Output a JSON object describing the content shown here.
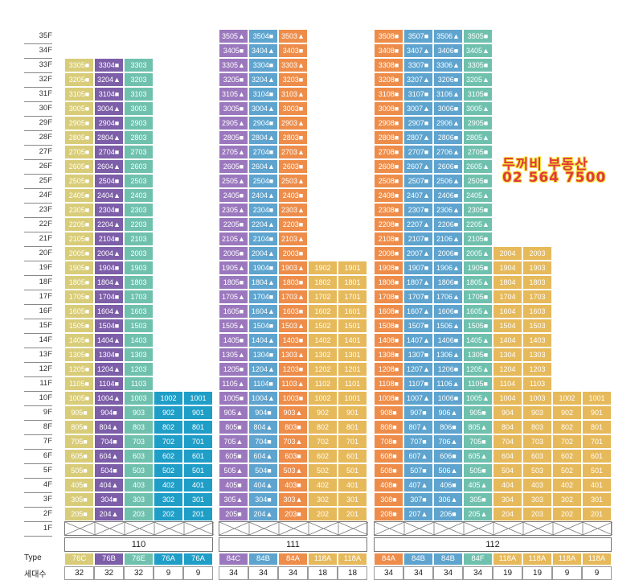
{
  "floors": [
    "35F",
    "34F",
    "33F",
    "32F",
    "31F",
    "30F",
    "29F",
    "28F",
    "27F",
    "26F",
    "25F",
    "24F",
    "23F",
    "22F",
    "21F",
    "20F",
    "19F",
    "18F",
    "17F",
    "16F",
    "15F",
    "14F",
    "13F",
    "12F",
    "11F",
    "10F",
    "9F",
    "8F",
    "7F",
    "6F",
    "5F",
    "4F",
    "3F",
    "2F",
    "1F"
  ],
  "legend": {
    "type_label": "Type",
    "households_label": "세대수"
  },
  "agency": {
    "name": "두꺼비 부동산",
    "phone": "02 564 7500"
  },
  "colors": {
    "76C": "#d8cc78",
    "76B": "#7d5ea8",
    "76E": "#6fc1ae",
    "76A": "#1f9ec8",
    "84C": "#9b78be",
    "84B": "#5ea4cf",
    "84A": "#ee8d4a",
    "118A": "#e6b95a"
  },
  "buildings": [
    {
      "name": "110",
      "lines": [
        {
          "type": "76C",
          "count": "32",
          "suffix": "05",
          "floors": [
            2,
            33
          ],
          "marks": "■",
          "color": "#d8cc78",
          "dark": false
        },
        {
          "type": "76B",
          "count": "32",
          "suffix": "04",
          "floors": [
            2,
            33
          ],
          "marks": "■▲",
          "color": "#7d5ea8",
          "dark": false
        },
        {
          "type": "76E",
          "count": "32",
          "suffix": "03",
          "floors": [
            2,
            33
          ],
          "marks": "",
          "color": "#6fc1ae",
          "dark": false
        },
        {
          "type": "76A",
          "count": "9",
          "suffix": "02",
          "floors": [
            2,
            10
          ],
          "marks": "",
          "color": "#1f9ec8",
          "dark": false
        },
        {
          "type": "76A",
          "count": "9",
          "suffix": "01",
          "floors": [
            2,
            10
          ],
          "marks": "",
          "color": "#1f9ec8",
          "dark": false
        }
      ]
    },
    {
      "name": "111",
      "lines": [
        {
          "type": "84C",
          "count": "34",
          "suffix": "05",
          "floors": [
            2,
            35
          ],
          "marks": "■▲",
          "color": "#9b78be",
          "dark": false
        },
        {
          "type": "84B",
          "count": "34",
          "suffix": "04",
          "floors": [
            2,
            35
          ],
          "marks": "■▲",
          "color": "#5ea4cf",
          "dark": false
        },
        {
          "type": "84A",
          "count": "34",
          "suffix": "03",
          "floors": [
            2,
            35
          ],
          "marks": "■▲",
          "color": "#ee8d4a",
          "dark": false
        },
        {
          "type": "118A",
          "count": "18",
          "suffix": "02",
          "floors": [
            2,
            19
          ],
          "marks": "",
          "color": "#e6b95a",
          "dark": false
        },
        {
          "type": "118A",
          "count": "18",
          "suffix": "01",
          "floors": [
            2,
            19
          ],
          "marks": "",
          "color": "#e6b95a",
          "dark": false
        }
      ]
    },
    {
      "name": "112",
      "lines": [
        {
          "type": "84A",
          "count": "34",
          "suffix": "08",
          "floors": [
            2,
            35
          ],
          "marks": "■",
          "color": "#ee8d4a",
          "dark": false
        },
        {
          "type": "84B",
          "count": "34",
          "suffix": "07",
          "floors": [
            2,
            35
          ],
          "marks": "■▲",
          "color": "#5ea4cf",
          "dark": false
        },
        {
          "type": "84B",
          "count": "34",
          "suffix": "06",
          "floors": [
            2,
            35
          ],
          "marks": "■▲",
          "color": "#5ea4cf",
          "dark": false
        },
        {
          "type": "84F",
          "count": "34",
          "suffix": "05",
          "floors": [
            2,
            35
          ],
          "marks": "■▲",
          "color": "#6fc1ae",
          "dark": false
        },
        {
          "type": "118A",
          "count": "19",
          "suffix": "04",
          "floors": [
            2,
            20
          ],
          "marks": "",
          "color": "#e6b95a",
          "dark": false
        },
        {
          "type": "118A",
          "count": "19",
          "suffix": "03",
          "floors": [
            2,
            20
          ],
          "marks": "",
          "color": "#e6b95a",
          "dark": false
        },
        {
          "type": "118A",
          "count": "9",
          "suffix": "02",
          "floors": [
            2,
            10
          ],
          "marks": "",
          "color": "#e6b95a",
          "dark": false
        },
        {
          "type": "118A",
          "count": "9",
          "suffix": "01",
          "floors": [
            2,
            10
          ],
          "marks": "",
          "color": "#e6b95a",
          "dark": false
        }
      ]
    }
  ]
}
